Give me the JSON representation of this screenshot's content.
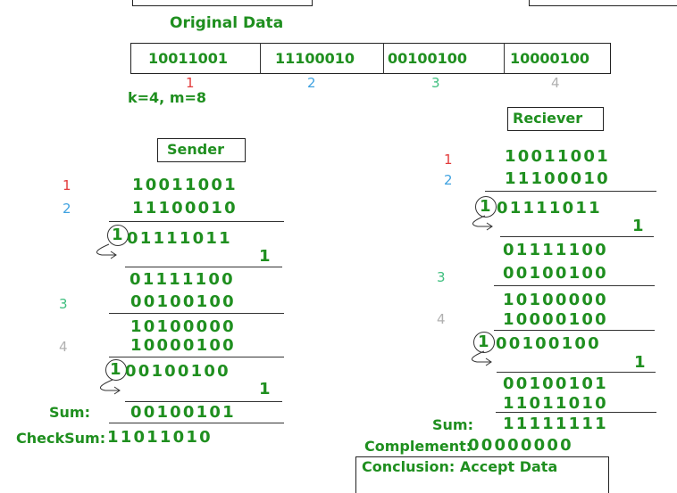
{
  "title": "Original Data",
  "original_blocks": [
    "10011001",
    "11100010",
    "00100100",
    "10000100"
  ],
  "block_indexes": [
    "1",
    "2",
    "3",
    "4"
  ],
  "index_colors": [
    "#e23b3b",
    "#3fa2e0",
    "#3fbf7f",
    "#b0b0b0"
  ],
  "params": "k=4, m=8",
  "sender": {
    "title": "Sender",
    "row1": "10011001",
    "row2": "11100010",
    "carry1": "1",
    "partial1": "01111011",
    "add1": "1",
    "result1": "01111100",
    "row3": "00100100",
    "result2": "10100000",
    "row4": "10000100",
    "carry2": "1",
    "partial2": "00100100",
    "add2": "1",
    "sum_label": "Sum:",
    "sum": "00100101",
    "checksum_label": "CheckSum:",
    "checksum": "11011010"
  },
  "receiver": {
    "title": "Reciever",
    "row1": "10011001",
    "row2": "11100010",
    "carry1": "1",
    "partial1": "01111011",
    "add1": "1",
    "result1": "01111100",
    "row3": "00100100",
    "result2": "10100000",
    "row4": "10000100",
    "carry2": "1",
    "partial2": "00100100",
    "add2": "1",
    "result3": "00100101",
    "checksum_row": "11011010",
    "sum_label": "Sum:",
    "sum": "11111111",
    "complement_label": "Complement:",
    "complement": "00000000",
    "conclusion": "Conclusion: Accept Data"
  }
}
